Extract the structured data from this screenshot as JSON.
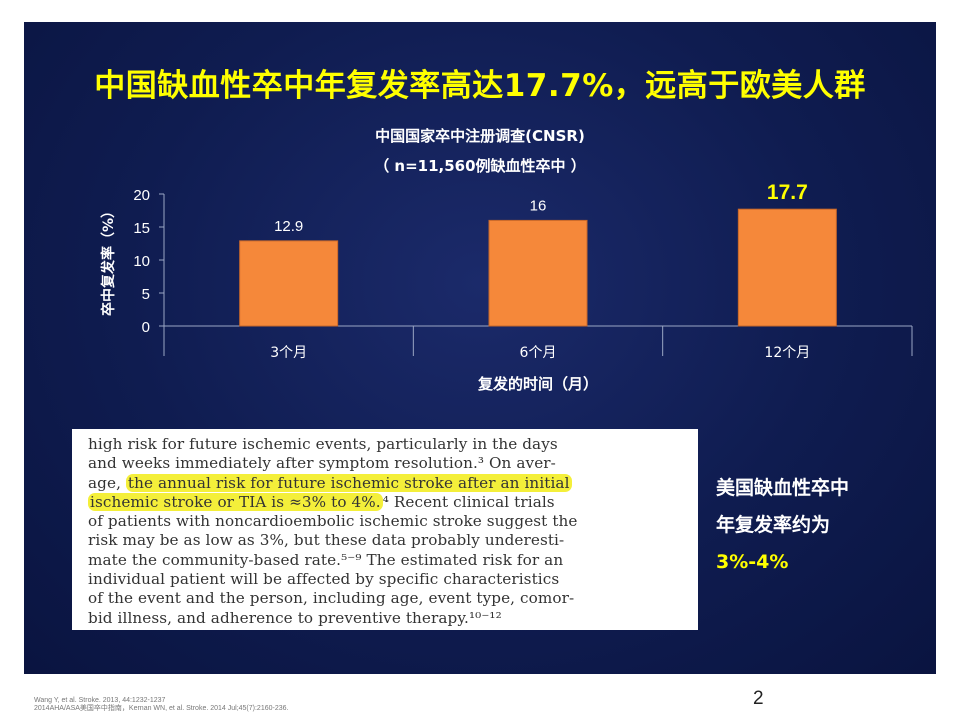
{
  "slide": {
    "headline": "中国缺血性卒中年复发率高达17.7%，远高于欧美人群",
    "page_number": "2",
    "references": [
      "Wang Y,  et al. Stroke. 2013, 44:1232-1237",
      "2014AHA/ASA美国卒中指南，Kernan WN, et al. Stroke. 2014 Jul;45(7):2160-236."
    ]
  },
  "chart_data": {
    "type": "bar",
    "title": "中国国家卒中注册调查(CNSR)",
    "subtitle": "（ n=11,560例缺血性卒中 ）",
    "categories": [
      "3个月",
      "6个月",
      "12个月"
    ],
    "values": [
      12.9,
      16,
      17.7
    ],
    "value_labels": [
      "12.9",
      "16",
      "17.7"
    ],
    "highlight_index": 2,
    "xlabel": "复发的时间（月）",
    "ylabel": "卒中复发率（%）",
    "ylim": [
      0,
      20
    ],
    "yticks": [
      0,
      5,
      10,
      15,
      20
    ],
    "grid": false,
    "bar_color": "#f5883a",
    "highlight_label_color": "#ffff00",
    "label_color": "#ffffff",
    "background_color": "#0f1c50"
  },
  "excerpt": {
    "lines": [
      {
        "pre": "high risk for future ischemic events, particularly in the days",
        "hl": "",
        "post": ""
      },
      {
        "pre": "and weeks immediately after symptom resolution.³ On aver-",
        "hl": "",
        "post": ""
      },
      {
        "pre": "age, ",
        "hl": "the annual risk for future ischemic stroke after an initial",
        "post": ""
      },
      {
        "pre": "",
        "hl": "ischemic stroke or TIA is ≈3% to 4%.",
        "post": "⁴ Recent clinical trials"
      },
      {
        "pre": "of patients with noncardioembolic ischemic stroke suggest the",
        "hl": "",
        "post": ""
      },
      {
        "pre": "risk may be as low as 3%, but these data probably underesti-",
        "hl": "",
        "post": ""
      },
      {
        "pre": "mate the community-based rate.⁵⁻⁹ The estimated risk for an",
        "hl": "",
        "post": ""
      },
      {
        "pre": "individual patient will be affected by specific characteristics",
        "hl": "",
        "post": ""
      },
      {
        "pre": "of the event and the person, including age, event type, comor-",
        "hl": "",
        "post": ""
      },
      {
        "pre": "bid illness, and adherence to preventive therapy.¹⁰⁻¹²",
        "hl": "",
        "post": ""
      }
    ]
  },
  "side_note": {
    "line1": "美国缺血性卒中",
    "line2": "年复发率约为",
    "line3": "3%-4%"
  }
}
